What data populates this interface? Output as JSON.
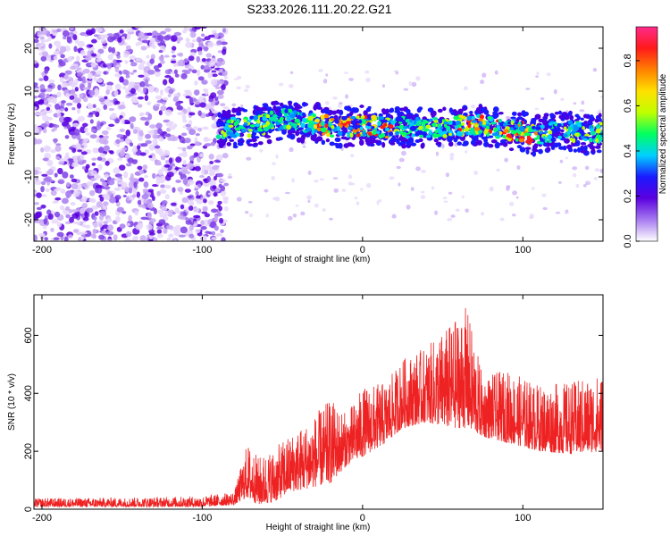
{
  "title": "S233.2026.111.20.22.G21",
  "chart_data": [
    {
      "type": "heatmap",
      "title": "",
      "xlabel": "Height of straight line (km)",
      "ylabel": "Frequency (Hz)",
      "xlim": [
        -205,
        150
      ],
      "ylim": [
        -25,
        25
      ],
      "x_ticks": [
        -200,
        -100,
        0,
        100
      ],
      "x_tick_labels": [
        "-200",
        "-100",
        "0",
        "100"
      ],
      "y_ticks": [
        -20,
        -10,
        0,
        10,
        20
      ],
      "y_tick_labels": [
        "-20",
        "-10",
        "0",
        "10",
        "20"
      ],
      "ridge_center_hz": [
        {
          "x": -90,
          "y": 1.5
        },
        {
          "x": -70,
          "y": 1.5
        },
        {
          "x": -50,
          "y": 3.5
        },
        {
          "x": -40,
          "y": 3
        },
        {
          "x": -30,
          "y": 2.5
        },
        {
          "x": -15,
          "y": 1.5
        },
        {
          "x": 0,
          "y": 2
        },
        {
          "x": 15,
          "y": 1.5
        },
        {
          "x": 30,
          "y": 1.5
        },
        {
          "x": 50,
          "y": 1.5
        },
        {
          "x": 65,
          "y": 2
        },
        {
          "x": 75,
          "y": 2
        },
        {
          "x": 90,
          "y": 1
        },
        {
          "x": 100,
          "y": 0.5
        },
        {
          "x": 110,
          "y": -0.5
        },
        {
          "x": 125,
          "y": 1
        },
        {
          "x": 140,
          "y": 0
        },
        {
          "x": 150,
          "y": 0.5
        }
      ],
      "noise_band_x": [
        -205,
        -85
      ],
      "colorbar": {
        "label": "Normalized spectral amplitude",
        "range": [
          0,
          0.95
        ],
        "ticks": [
          0.0,
          0.2,
          0.4,
          0.6,
          0.8
        ],
        "tick_labels": [
          "0.0",
          "0.2",
          "0.4",
          "0.6",
          "0.8"
        ],
        "colors": [
          "#ffffff",
          "#a77bf0",
          "#5b00e0",
          "#1a1aff",
          "#00d0ff",
          "#00ff60",
          "#c0ff00",
          "#ffe000",
          "#ff8000",
          "#ff1a1a",
          "#ff2a8a"
        ]
      }
    },
    {
      "type": "line",
      "title": "",
      "xlabel": "Height of straight line (km)",
      "ylabel": "SNR (10 * v/v)",
      "xlim": [
        -205,
        150
      ],
      "ylim": [
        0,
        740
      ],
      "x_ticks": [
        -200,
        -100,
        0,
        100
      ],
      "x_tick_labels": [
        "-200",
        "-100",
        "0",
        "100"
      ],
      "y_ticks": [
        0,
        200,
        400,
        600
      ],
      "y_tick_labels": [
        "0",
        "200",
        "400",
        "600"
      ],
      "series": [
        {
          "name": "SNR",
          "color": "#ee2222",
          "envelope": [
            {
              "x": -205,
              "low": 8,
              "high": 38
            },
            {
              "x": -150,
              "low": 8,
              "high": 40
            },
            {
              "x": -100,
              "low": 8,
              "high": 45
            },
            {
              "x": -80,
              "low": 15,
              "high": 60
            },
            {
              "x": -72,
              "low": 40,
              "high": 230
            },
            {
              "x": -65,
              "low": 15,
              "high": 180
            },
            {
              "x": -55,
              "low": 25,
              "high": 210
            },
            {
              "x": -45,
              "low": 60,
              "high": 260
            },
            {
              "x": -35,
              "low": 70,
              "high": 300
            },
            {
              "x": -20,
              "low": 90,
              "high": 380
            },
            {
              "x": -10,
              "low": 150,
              "high": 330
            },
            {
              "x": 0,
              "low": 180,
              "high": 420
            },
            {
              "x": 15,
              "low": 230,
              "high": 440
            },
            {
              "x": 25,
              "low": 280,
              "high": 520
            },
            {
              "x": 40,
              "low": 300,
              "high": 560
            },
            {
              "x": 55,
              "low": 280,
              "high": 640
            },
            {
              "x": 65,
              "low": 280,
              "high": 700
            },
            {
              "x": 75,
              "low": 250,
              "high": 460
            },
            {
              "x": 90,
              "low": 230,
              "high": 480
            },
            {
              "x": 110,
              "low": 200,
              "high": 430
            },
            {
              "x": 130,
              "low": 190,
              "high": 440
            },
            {
              "x": 150,
              "low": 200,
              "high": 470
            }
          ]
        }
      ]
    }
  ]
}
